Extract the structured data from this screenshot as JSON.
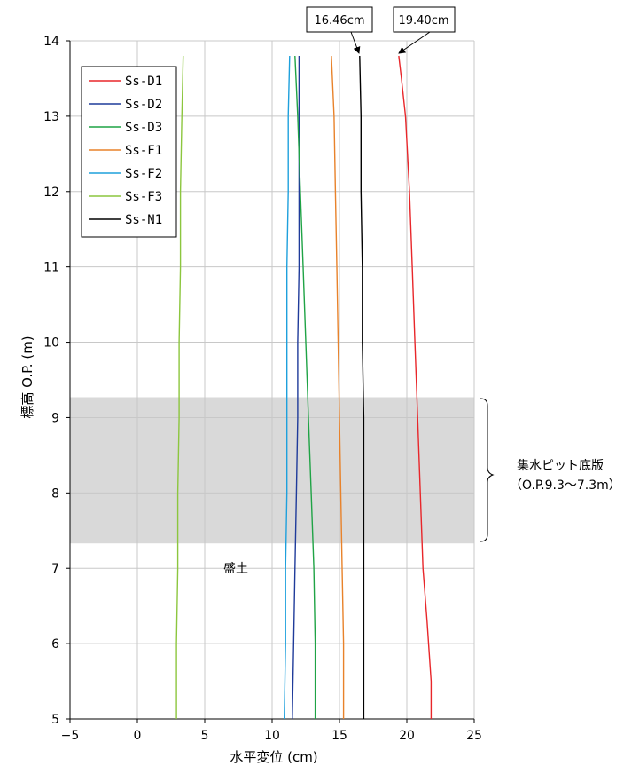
{
  "chart_data": {
    "type": "line",
    "xlabel": "水平変位 (cm)",
    "ylabel": "標高 O.P. (m)",
    "xlim": [
      -5,
      25
    ],
    "ylim": [
      5,
      14
    ],
    "xticks": [
      -5,
      0,
      5,
      10,
      15,
      20,
      25
    ],
    "xtick_labels": [
      "−5",
      "0",
      "5",
      "10",
      "15",
      "20",
      "25"
    ],
    "yticks": [
      5,
      6,
      7,
      8,
      9,
      10,
      11,
      12,
      13,
      14
    ],
    "ytick_labels": [
      "5",
      "6",
      "7",
      "8",
      "9",
      "10",
      "11",
      "12",
      "13",
      "14"
    ],
    "grid": true,
    "legend_position": "top-left",
    "shaded_band": {
      "y_from": 7.33,
      "y_to": 9.27,
      "color": "#d9d9d9"
    },
    "band_label": [
      "集水ピット底版",
      "（O.P.9.3〜7.3m）"
    ],
    "region_label": "盛土",
    "callouts": [
      "16.46cm",
      "19.40cm"
    ],
    "series": [
      {
        "name": "Ss-D1",
        "color": "#e8262a",
        "points": [
          [
            21.8,
            5.0
          ],
          [
            21.8,
            5.5
          ],
          [
            21.5,
            6.3
          ],
          [
            21.2,
            7.0
          ],
          [
            21.0,
            8.0
          ],
          [
            20.8,
            9.0
          ],
          [
            20.6,
            10.0
          ],
          [
            20.4,
            11.0
          ],
          [
            20.2,
            12.0
          ],
          [
            19.9,
            13.0
          ],
          [
            19.6,
            13.5
          ],
          [
            19.4,
            13.8
          ]
        ]
      },
      {
        "name": "Ss-D2",
        "color": "#1f3b9a",
        "points": [
          [
            11.5,
            5.0
          ],
          [
            11.6,
            6.0
          ],
          [
            11.7,
            7.0
          ],
          [
            11.8,
            8.0
          ],
          [
            11.9,
            9.0
          ],
          [
            11.9,
            10.0
          ],
          [
            12.0,
            11.0
          ],
          [
            12.0,
            12.0
          ],
          [
            12.0,
            13.0
          ],
          [
            12.0,
            13.8
          ]
        ]
      },
      {
        "name": "Ss-D3",
        "color": "#1fa345",
        "points": [
          [
            13.2,
            5.0
          ],
          [
            13.2,
            6.0
          ],
          [
            13.1,
            7.0
          ],
          [
            12.9,
            8.0
          ],
          [
            12.7,
            9.0
          ],
          [
            12.5,
            10.0
          ],
          [
            12.3,
            11.0
          ],
          [
            12.1,
            12.0
          ],
          [
            11.9,
            13.0
          ],
          [
            11.7,
            13.8
          ]
        ]
      },
      {
        "name": "Ss-F1",
        "color": "#e8822a",
        "points": [
          [
            15.3,
            5.0
          ],
          [
            15.3,
            6.0
          ],
          [
            15.2,
            7.0
          ],
          [
            15.1,
            8.0
          ],
          [
            15.0,
            9.0
          ],
          [
            14.9,
            10.0
          ],
          [
            14.8,
            11.0
          ],
          [
            14.7,
            12.0
          ],
          [
            14.6,
            13.0
          ],
          [
            14.4,
            13.8
          ]
        ]
      },
      {
        "name": "Ss-F2",
        "color": "#1ea0dc",
        "points": [
          [
            10.9,
            5.0
          ],
          [
            11.0,
            6.0
          ],
          [
            11.0,
            7.0
          ],
          [
            11.1,
            8.0
          ],
          [
            11.1,
            9.0
          ],
          [
            11.1,
            10.0
          ],
          [
            11.1,
            11.0
          ],
          [
            11.2,
            12.0
          ],
          [
            11.2,
            13.0
          ],
          [
            11.3,
            13.8
          ]
        ]
      },
      {
        "name": "Ss-F3",
        "color": "#8cc63e",
        "points": [
          [
            2.9,
            5.0
          ],
          [
            2.9,
            6.0
          ],
          [
            3.0,
            7.0
          ],
          [
            3.0,
            8.0
          ],
          [
            3.1,
            9.0
          ],
          [
            3.1,
            10.0
          ],
          [
            3.2,
            11.0
          ],
          [
            3.2,
            12.0
          ],
          [
            3.3,
            13.0
          ],
          [
            3.4,
            13.8
          ]
        ]
      },
      {
        "name": "Ss-N1",
        "color": "#000000",
        "points": [
          [
            16.8,
            5.0
          ],
          [
            16.8,
            6.0
          ],
          [
            16.8,
            7.0
          ],
          [
            16.8,
            8.0
          ],
          [
            16.8,
            9.0
          ],
          [
            16.7,
            10.0
          ],
          [
            16.7,
            11.0
          ],
          [
            16.6,
            12.0
          ],
          [
            16.6,
            13.0
          ],
          [
            16.5,
            13.8
          ]
        ]
      }
    ]
  }
}
